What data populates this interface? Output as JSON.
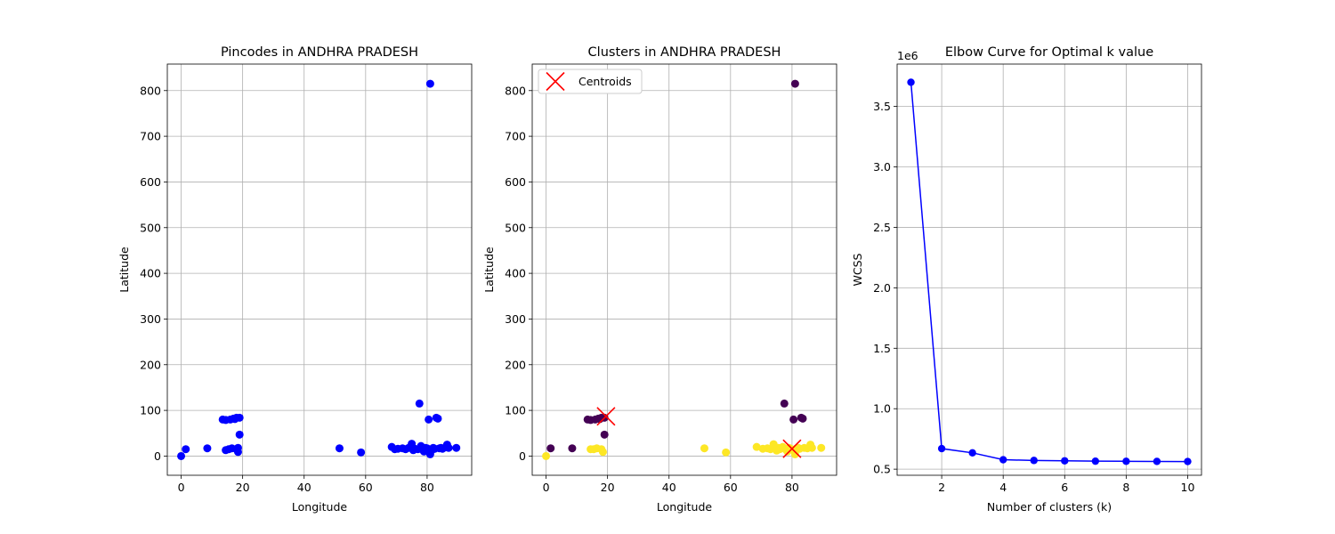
{
  "chart_data": [
    {
      "type": "scatter",
      "title": "Pincodes in ANDHRA PRADESH",
      "xlabel": "Longitude",
      "ylabel": "Latitude",
      "xlim": [
        -4.5,
        94.5
      ],
      "ylim": [
        -42,
        858
      ],
      "xticks": [
        0,
        20,
        40,
        60,
        80
      ],
      "yticks": [
        0,
        100,
        200,
        300,
        400,
        500,
        600,
        700,
        800
      ],
      "grid": true,
      "series": [
        {
          "color": "#0000ff",
          "points": [
            [
              0,
              0
            ],
            [
              1.5,
              15
            ],
            [
              8.5,
              17
            ],
            [
              13.5,
              80
            ],
            [
              14.5,
              13
            ],
            [
              14.5,
              79
            ],
            [
              15.5,
              15
            ],
            [
              16,
              80
            ],
            [
              16.5,
              17
            ],
            [
              17,
              82
            ],
            [
              17.5,
              81
            ],
            [
              18,
              15
            ],
            [
              18,
              84
            ],
            [
              18.5,
              9
            ],
            [
              18.5,
              18
            ],
            [
              19,
              47
            ],
            [
              19,
              84
            ],
            [
              51.5,
              17
            ],
            [
              58.5,
              8
            ],
            [
              68.5,
              20
            ],
            [
              69.5,
              15
            ],
            [
              70.5,
              16
            ],
            [
              72,
              17
            ],
            [
              73,
              15
            ],
            [
              74,
              18
            ],
            [
              75,
              27
            ],
            [
              75.5,
              13
            ],
            [
              76,
              16
            ],
            [
              77,
              15
            ],
            [
              77.5,
              115
            ],
            [
              78,
              22
            ],
            [
              78.5,
              14
            ],
            [
              79,
              10
            ],
            [
              79.5,
              18
            ],
            [
              80,
              17
            ],
            [
              80.5,
              80
            ],
            [
              81,
              815
            ],
            [
              81,
              4
            ],
            [
              81.5,
              13
            ],
            [
              82,
              18
            ],
            [
              82.5,
              16
            ],
            [
              83,
              84
            ],
            [
              83.5,
              82
            ],
            [
              84,
              17
            ],
            [
              84.5,
              18
            ],
            [
              85,
              16
            ],
            [
              86,
              19
            ],
            [
              86.5,
              25
            ],
            [
              87,
              18
            ],
            [
              89.5,
              18
            ]
          ]
        }
      ]
    },
    {
      "type": "scatter",
      "title": "Clusters in ANDHRA PRADESH",
      "xlabel": "Longitude",
      "ylabel": "Latitude",
      "xlim": [
        -4.5,
        94.5
      ],
      "ylim": [
        -42,
        858
      ],
      "xticks": [
        0,
        20,
        40,
        60,
        80
      ],
      "yticks": [
        0,
        100,
        200,
        300,
        400,
        500,
        600,
        700,
        800
      ],
      "grid": true,
      "legend": {
        "position": "top-left",
        "entries": [
          "Centroids"
        ]
      },
      "series": [
        {
          "color": "#440154",
          "points": [
            [
              1.5,
              17
            ],
            [
              8.5,
              17
            ],
            [
              13.5,
              80
            ],
            [
              14.5,
              79
            ],
            [
              16,
              80
            ],
            [
              17,
              82
            ],
            [
              17.5,
              81
            ],
            [
              18,
              84
            ],
            [
              19,
              47
            ],
            [
              19,
              84
            ],
            [
              77.5,
              115
            ],
            [
              80.5,
              80
            ],
            [
              81,
              815
            ],
            [
              83,
              84
            ],
            [
              83.5,
              82
            ]
          ]
        },
        {
          "color": "#fde725",
          "points": [
            [
              0,
              0
            ],
            [
              14.5,
              15
            ],
            [
              15.5,
              15
            ],
            [
              16.5,
              17
            ],
            [
              18,
              15
            ],
            [
              18.5,
              9
            ],
            [
              51.5,
              17
            ],
            [
              58.5,
              8
            ],
            [
              68.5,
              20
            ],
            [
              70.5,
              16
            ],
            [
              72,
              17
            ],
            [
              73,
              15
            ],
            [
              74,
              26
            ],
            [
              75,
              12
            ],
            [
              75.5,
              18
            ],
            [
              76,
              15
            ],
            [
              77,
              20
            ],
            [
              78,
              14
            ],
            [
              78.5,
              10
            ],
            [
              79,
              18
            ],
            [
              79.5,
              16
            ],
            [
              80.5,
              13
            ],
            [
              81,
              4
            ],
            [
              81.5,
              17
            ],
            [
              82,
              18
            ],
            [
              82.5,
              16
            ],
            [
              84,
              18
            ],
            [
              85,
              17
            ],
            [
              86,
              25
            ],
            [
              86.5,
              18
            ],
            [
              89.5,
              18
            ]
          ]
        }
      ],
      "centroids": {
        "name": "Centroids",
        "color": "#ff0000",
        "points": [
          [
            19.5,
            87
          ],
          [
            80,
            16
          ]
        ]
      }
    },
    {
      "type": "line",
      "title": "Elbow Curve for Optimal k value",
      "xlabel": "Number of clusters (k)",
      "ylabel": "WCSS",
      "y_offset_label": "1e6",
      "xlim": [
        0.55,
        10.45
      ],
      "ylim": [
        0.4495,
        3.8505
      ],
      "xticks": [
        2,
        4,
        6,
        8,
        10
      ],
      "yticks": [
        0.5,
        1.0,
        1.5,
        2.0,
        2.5,
        3.0,
        3.5
      ],
      "ytick_labels": [
        "0.5",
        "1.0",
        "1.5",
        "2.0",
        "2.5",
        "3.0",
        "3.5"
      ],
      "grid": true,
      "series": [
        {
          "color": "#0000ff",
          "x": [
            1,
            2,
            3,
            4,
            5,
            6,
            7,
            8,
            9,
            10
          ],
          "y": [
            3.7,
            0.67,
            0.635,
            0.578,
            0.572,
            0.569,
            0.566,
            0.565,
            0.564,
            0.563
          ]
        }
      ]
    }
  ]
}
